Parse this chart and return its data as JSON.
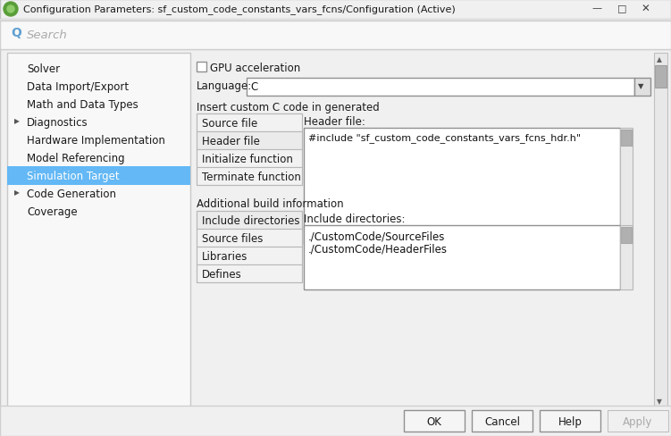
{
  "title": "Configuration Parameters: sf_custom_code_constants_vars_fcns/Configuration (Active)",
  "bg_color": "#f0f0f0",
  "white": "#ffffff",
  "search_placeholder": "Search",
  "left_panel_items": [
    {
      "text": "Solver",
      "arrow": false,
      "selected": false
    },
    {
      "text": "Data Import/Export",
      "arrow": false,
      "selected": false
    },
    {
      "text": "Math and Data Types",
      "arrow": false,
      "selected": false
    },
    {
      "text": "Diagnostics",
      "arrow": true,
      "selected": false
    },
    {
      "text": "Hardware Implementation",
      "arrow": false,
      "selected": false
    },
    {
      "text": "Model Referencing",
      "arrow": false,
      "selected": false
    },
    {
      "text": "Simulation Target",
      "arrow": false,
      "selected": true
    },
    {
      "text": "Code Generation",
      "arrow": true,
      "selected": false
    },
    {
      "text": "Coverage",
      "arrow": false,
      "selected": false
    }
  ],
  "selected_item_bg": "#63b8f5",
  "selected_item_fg": "#ffffff",
  "gpu_label": "GPU acceleration",
  "language_label": "Language:",
  "language_value": "C",
  "custom_code_label": "Insert custom C code in generated",
  "custom_code_tabs": [
    "Source file",
    "Header file",
    "Initialize function",
    "Terminate function"
  ],
  "selected_custom_tab": 1,
  "header_file_label": "Header file:",
  "header_file_content": "#include \"sf_custom_code_constants_vars_fcns_hdr.h\"",
  "additional_build_label": "Additional build information",
  "build_tabs": [
    "Include directories",
    "Source files",
    "Libraries",
    "Defines"
  ],
  "selected_build_tab": 0,
  "include_dir_label": "Include directories:",
  "include_dir_line1": "./CustomCode/SourceFiles",
  "include_dir_line2": "./CustomCode/HeaderFiles",
  "buttons": [
    "OK",
    "Cancel",
    "Help",
    "Apply"
  ],
  "icon_color": "#5a9e3a",
  "icon_inner": "#8fcc6a",
  "scrollbar_bg": "#d4d4d4",
  "scrollbar_thumb": "#b0b0b0",
  "panel_bg": "#f5f5f5",
  "tab_selected_bg": "#ebebeb",
  "tab_unselected_bg": "#f2f2f2",
  "border_dark": "#999999",
  "border_light": "#cccccc",
  "text_dark": "#1a1a1a",
  "text_gray": "#aaaaaa"
}
